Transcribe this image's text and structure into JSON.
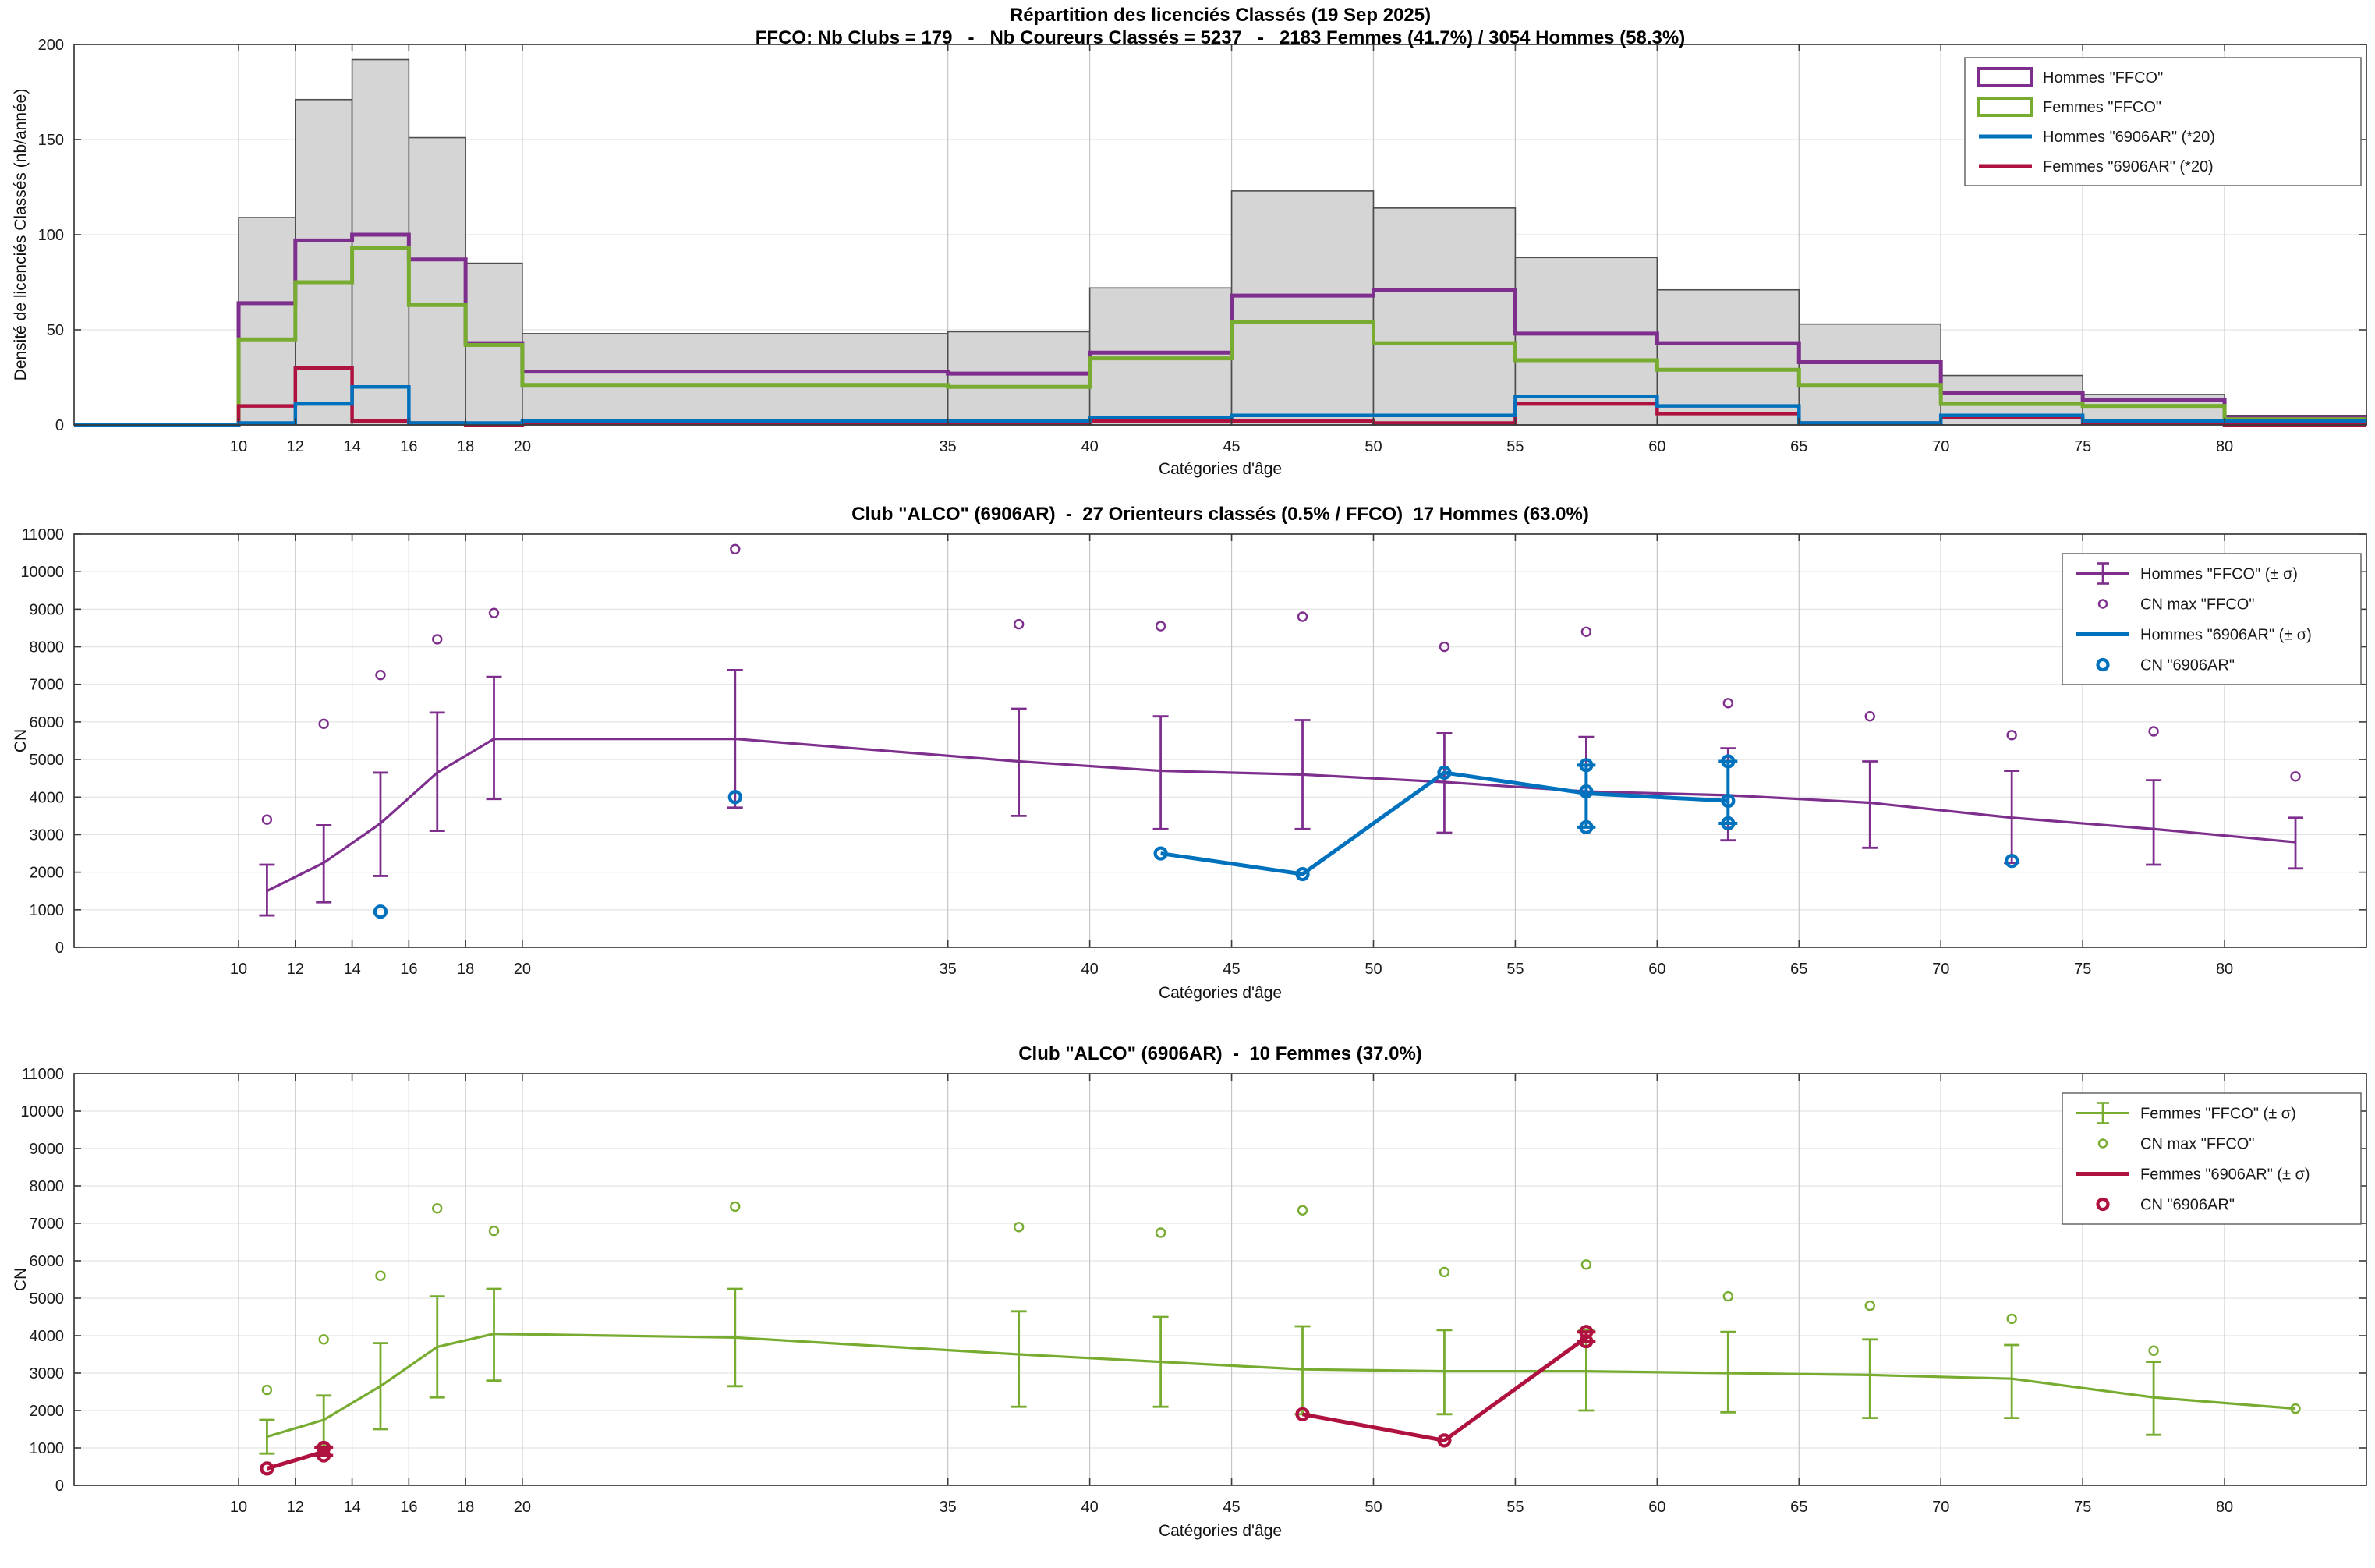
{
  "page": {
    "background": "#ffffff"
  },
  "palette": {
    "hommes_ffco": "#7E2F8E",
    "femmes_ffco": "#77AC30",
    "hommes_club": "#0072BD",
    "femmes_club": "#B0123F",
    "bar_fill": "#D5D5D5",
    "bar_edge": "#4D4D4D",
    "grid_h": "#E4E4E4",
    "grid_v": "#C6C6C6",
    "axis": "#3B3B3B",
    "tick_text": "#1A1A1A"
  },
  "chart_data": [
    {
      "type": "bar",
      "title": "Répartition des licenciés Classés (19 Sep 2025)",
      "subtitle": "FFCO: Nb Clubs = 179   -   Nb Coureurs Classés = 5237   -   2183 Femmes (41.7%) / 3054 Hommes (58.3%)",
      "xlabel": "Catégories d'âge",
      "ylabel": "Densité de licenciés Classés (nb/année)",
      "xlim": [
        4.2,
        85.0
      ],
      "ylim": [
        0,
        200
      ],
      "xticks": [
        10,
        12,
        14,
        16,
        18,
        20,
        35,
        40,
        45,
        50,
        55,
        60,
        65,
        70,
        75,
        80
      ],
      "yticks": [
        0,
        50,
        100,
        150,
        200
      ],
      "bin_edges": [
        10,
        12,
        14,
        16,
        18,
        20,
        35,
        40,
        45,
        50,
        55,
        60,
        65,
        70,
        75,
        80,
        85
      ],
      "bars_total": [
        109,
        171,
        192,
        151,
        85,
        48,
        49,
        72,
        123,
        114,
        88,
        71,
        53,
        26,
        16,
        5
      ],
      "series": [
        {
          "name": "Hommes \"FFCO\"",
          "color": "#7E2F8E",
          "width": 5.0,
          "values": [
            64,
            97,
            100,
            87,
            43,
            28,
            27,
            38,
            68,
            71,
            48,
            43,
            33,
            17,
            13,
            4
          ]
        },
        {
          "name": "Femmes \"FFCO\"",
          "color": "#77AC30",
          "width": 5.0,
          "values": [
            45,
            75,
            93,
            63,
            42,
            21,
            20,
            35,
            54,
            43,
            34,
            29,
            21,
            11,
            10,
            3
          ]
        },
        {
          "name": "Femmes \"6906AR\" (*20)",
          "color": "#B0123F",
          "width": 4.5,
          "values": [
            10,
            30,
            2,
            1,
            0,
            1,
            1,
            2,
            2,
            1,
            11,
            6,
            1,
            4,
            1,
            0
          ]
        },
        {
          "name": "Hommes \"6906AR\" (*20)",
          "color": "#0072BD",
          "width": 4.5,
          "values": [
            1,
            11,
            20,
            1,
            1,
            2,
            2,
            4,
            5,
            5,
            15,
            10,
            1,
            5,
            2,
            2
          ]
        }
      ],
      "legend": [
        {
          "label": "Hommes \"FFCO\"",
          "marker": "rect",
          "color": "#7E2F8E"
        },
        {
          "label": "Femmes \"FFCO\"",
          "marker": "rect",
          "color": "#77AC30"
        },
        {
          "label": "Hommes \"6906AR\" (*20)",
          "marker": "line",
          "color": "#0072BD"
        },
        {
          "label": "Femmes \"6906AR\" (*20)",
          "marker": "line",
          "color": "#B0123F"
        }
      ]
    },
    {
      "type": "line",
      "title": "Club \"ALCO\" (6906AR)  -  27 Orienteurs classés (0.5% / FFCO)  17 Hommes (63.0%)",
      "xlabel": "Catégories d'âge",
      "ylabel": "CN",
      "xlim": [
        4.2,
        85.0
      ],
      "ylim": [
        0,
        11000
      ],
      "xticks": [
        10,
        12,
        14,
        16,
        18,
        20,
        35,
        40,
        45,
        50,
        55,
        60,
        65,
        70,
        75,
        80
      ],
      "yticks": [
        0,
        1000,
        2000,
        3000,
        4000,
        5000,
        6000,
        7000,
        8000,
        9000,
        10000,
        11000
      ],
      "x": [
        11,
        13,
        15,
        17,
        19,
        27.5,
        37.5,
        42.5,
        47.5,
        52.5,
        57.5,
        62.5,
        67.5,
        72.5,
        77.5,
        82.5
      ],
      "ffco": {
        "name": "Hommes \"FFCO\" (± σ)",
        "color": "#7E2F8E",
        "mean": [
          1500,
          2250,
          3300,
          4650,
          5550,
          5550,
          4950,
          4700,
          4600,
          4400,
          4150,
          4050,
          3850,
          3450,
          3150,
          2800
        ],
        "lo": [
          850,
          1200,
          1900,
          3100,
          3950,
          3720,
          3500,
          3150,
          3150,
          3050,
          3200,
          2850,
          2650,
          2250,
          2200,
          2100
        ],
        "hi": [
          2200,
          3250,
          4650,
          6250,
          7200,
          7380,
          6350,
          6150,
          6050,
          5700,
          5600,
          5300,
          4950,
          4700,
          4450,
          3450
        ]
      },
      "ffco_max": {
        "name": "CN max \"FFCO\"",
        "values": [
          3400,
          5950,
          7250,
          8200,
          8900,
          10600,
          8600,
          8550,
          8800,
          8000,
          8400,
          6500,
          6150,
          5650,
          5750,
          4550
        ]
      },
      "club": {
        "name": "Hommes \"6906AR\" (± σ)",
        "points_name": "CN \"6906AR\"",
        "color": "#0072BD",
        "segments": [
          {
            "x": [
              42.5,
              47.5,
              52.5,
              57.5,
              62.5
            ],
            "y": [
              2500,
              1950,
              4650,
              4100,
              3900
            ]
          }
        ],
        "err": [
          {
            "x": 57.5,
            "lo": 3200,
            "hi": 4850
          },
          {
            "x": 62.5,
            "lo": 3300,
            "hi": 4950
          }
        ],
        "points": [
          [
            15,
            950
          ],
          [
            27.5,
            4000
          ],
          [
            42.5,
            2500
          ],
          [
            47.5,
            1950
          ],
          [
            52.5,
            4650
          ],
          [
            57.5,
            4850
          ],
          [
            57.5,
            4150
          ],
          [
            57.5,
            3200
          ],
          [
            62.5,
            4950
          ],
          [
            62.5,
            3900
          ],
          [
            62.5,
            3300
          ],
          [
            72.5,
            2300
          ]
        ]
      },
      "legend": [
        {
          "label": "Hommes \"FFCO\" (± σ)",
          "marker": "errline",
          "color": "#7E2F8E"
        },
        {
          "label": "CN max \"FFCO\"",
          "marker": "circle",
          "color": "#7E2F8E"
        },
        {
          "label": "Hommes \"6906AR\" (± σ)",
          "marker": "thickline",
          "color": "#0072BD"
        },
        {
          "label": "CN \"6906AR\"",
          "marker": "circle-bold",
          "color": "#0072BD"
        }
      ]
    },
    {
      "type": "line",
      "title": "Club \"ALCO\" (6906AR)  -  10 Femmes (37.0%)",
      "xlabel": "Catégories d'âge",
      "ylabel": "CN",
      "xlim": [
        4.2,
        85.0
      ],
      "ylim": [
        0,
        11000
      ],
      "xticks": [
        10,
        12,
        14,
        16,
        18,
        20,
        35,
        40,
        45,
        50,
        55,
        60,
        65,
        70,
        75,
        80
      ],
      "yticks": [
        0,
        1000,
        2000,
        3000,
        4000,
        5000,
        6000,
        7000,
        8000,
        9000,
        10000,
        11000
      ],
      "x": [
        11,
        13,
        15,
        17,
        19,
        27.5,
        37.5,
        42.5,
        47.5,
        52.5,
        57.5,
        62.5,
        67.5,
        72.5,
        77.5,
        82.5
      ],
      "ffco": {
        "name": "Femmes \"FFCO\" (± σ)",
        "color": "#77AC30",
        "mean": [
          1300,
          1750,
          2650,
          3700,
          4050,
          3950,
          3500,
          3300,
          3100,
          3050,
          3050,
          3000,
          2950,
          2850,
          2350,
          2050
        ],
        "lo": [
          850,
          1050,
          1500,
          2350,
          2800,
          2650,
          2100,
          2100,
          1900,
          1900,
          2000,
          1950,
          1800,
          1800,
          1350,
          2050
        ],
        "hi": [
          1750,
          2400,
          3800,
          5050,
          5250,
          5250,
          4650,
          4500,
          4250,
          4150,
          4150,
          4100,
          3900,
          3750,
          3300,
          2050
        ]
      },
      "ffco_max": {
        "name": "CN max \"FFCO\"",
        "values": [
          2550,
          3900,
          5600,
          7400,
          6800,
          7450,
          6900,
          6750,
          7350,
          5700,
          5900,
          5050,
          4800,
          4450,
          3600,
          2050
        ]
      },
      "club": {
        "name": "Femmes \"6906AR\" (± σ)",
        "points_name": "CN \"6906AR\"",
        "color": "#B0123F",
        "segments": [
          {
            "x": [
              11,
              13
            ],
            "y": [
              450,
              900
            ]
          },
          {
            "x": [
              47.5,
              52.5,
              57.5
            ],
            "y": [
              1900,
              1200,
              3950
            ]
          }
        ],
        "err": [
          {
            "x": 13,
            "lo": 800,
            "hi": 1000
          },
          {
            "x": 57.5,
            "lo": 3850,
            "hi": 4100
          }
        ],
        "points": [
          [
            11,
            450
          ],
          [
            13,
            1000
          ],
          [
            13,
            800
          ],
          [
            47.5,
            1900
          ],
          [
            52.5,
            1200
          ],
          [
            57.5,
            4100
          ],
          [
            57.5,
            3850
          ]
        ]
      },
      "legend": [
        {
          "label": "Femmes \"FFCO\" (± σ)",
          "marker": "errline",
          "color": "#77AC30"
        },
        {
          "label": "CN max \"FFCO\"",
          "marker": "circle",
          "color": "#77AC30"
        },
        {
          "label": "Femmes \"6906AR\" (± σ)",
          "marker": "thickline",
          "color": "#B0123F"
        },
        {
          "label": "CN \"6906AR\"",
          "marker": "circle-bold",
          "color": "#B0123F"
        }
      ]
    }
  ]
}
